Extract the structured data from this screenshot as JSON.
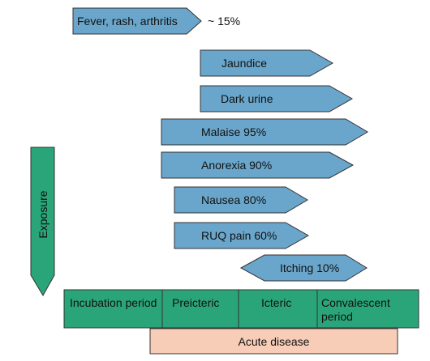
{
  "exposure": {
    "label": "Exposure"
  },
  "symptoms": [
    {
      "id": "fever-rash-arthritis",
      "label": "Fever, rash, arthritis",
      "note": "~ 15%"
    },
    {
      "id": "jaundice",
      "label": "Jaundice"
    },
    {
      "id": "dark-urine",
      "label": "Dark urine"
    },
    {
      "id": "malaise",
      "label": "Malaise 95%"
    },
    {
      "id": "anorexia",
      "label": "Anorexia 90%"
    },
    {
      "id": "nausea",
      "label": "Nausea 80%"
    },
    {
      "id": "ruq-pain",
      "label": "RUQ pain 60%"
    },
    {
      "id": "itching",
      "label": "Itching 10%"
    }
  ],
  "phases": [
    {
      "id": "incubation",
      "label": "Incubation period"
    },
    {
      "id": "preicteric",
      "label": "Preicteric"
    },
    {
      "id": "icteric",
      "label": "Icteric"
    },
    {
      "id": "convalescent",
      "label": "Convalescent period"
    }
  ],
  "acute": {
    "label": "Acute disease"
  },
  "colors": {
    "arrow_fill": "#6aa6cb",
    "phase_fill": "#2aa57a",
    "acute_fill": "#f7cdb8",
    "stroke": "#333333"
  }
}
